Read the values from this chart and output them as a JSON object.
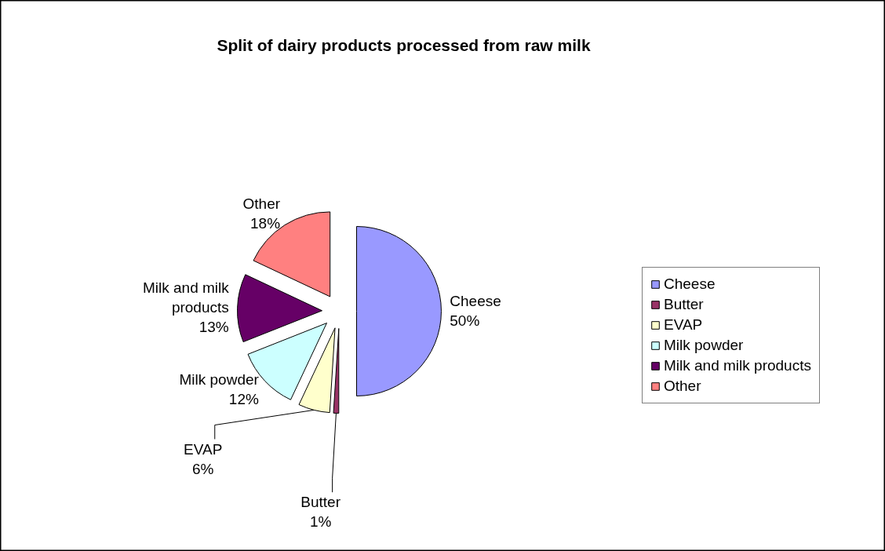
{
  "chart_data": {
    "type": "pie",
    "title": "Split of dairy products processed from raw milk",
    "categories": [
      "Cheese",
      "Butter",
      "EVAP",
      "Milk powder",
      "Milk and milk products",
      "Other"
    ],
    "values": [
      50,
      1,
      6,
      12,
      13,
      18
    ],
    "colors": [
      "#9999ff",
      "#993366",
      "#ffffcc",
      "#ccffff",
      "#660066",
      "#ff8080"
    ],
    "value_labels": [
      "Cheese\n50%",
      "Butter\n1%",
      "EVAP\n6%",
      "Milk powder\n12%",
      "Milk and milk\nproducts\n13%",
      "Other\n18%"
    ],
    "legend": "right"
  }
}
